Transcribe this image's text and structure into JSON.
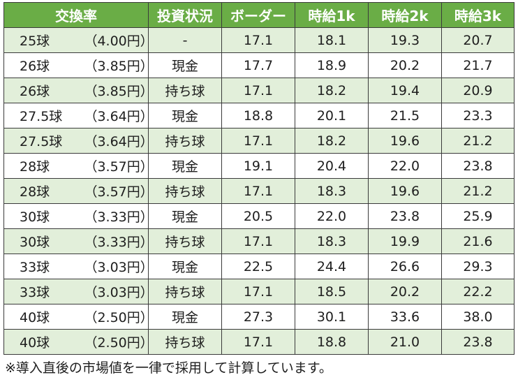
{
  "headers": [
    "交換率",
    "投資状況",
    "ボーダー",
    "時給1k",
    "時給2k",
    "時給3k"
  ],
  "rows": [
    {
      "balls": "25球",
      "yen": "（4.00円）",
      "status": "-",
      "border": "17.1",
      "k1": "18.1",
      "k2": "19.3",
      "k3": "20.7"
    },
    {
      "balls": "26球",
      "yen": "（3.85円）",
      "status": "現金",
      "border": "17.7",
      "k1": "18.9",
      "k2": "20.2",
      "k3": "21.7"
    },
    {
      "balls": "26球",
      "yen": "（3.85円）",
      "status": "持ち球",
      "border": "17.1",
      "k1": "18.2",
      "k2": "19.4",
      "k3": "20.9"
    },
    {
      "balls": "27.5球",
      "yen": "（3.64円）",
      "status": "現金",
      "border": "18.8",
      "k1": "20.1",
      "k2": "21.5",
      "k3": "23.3"
    },
    {
      "balls": "27.5球",
      "yen": "（3.64円）",
      "status": "持ち球",
      "border": "17.1",
      "k1": "18.2",
      "k2": "19.6",
      "k3": "21.2"
    },
    {
      "balls": "28球",
      "yen": "（3.57円）",
      "status": "現金",
      "border": "19.1",
      "k1": "20.4",
      "k2": "22.0",
      "k3": "23.8"
    },
    {
      "balls": "28球",
      "yen": "（3.57円）",
      "status": "持ち球",
      "border": "17.1",
      "k1": "18.3",
      "k2": "19.6",
      "k3": "21.2"
    },
    {
      "balls": "30球",
      "yen": "（3.33円）",
      "status": "現金",
      "border": "20.5",
      "k1": "22.0",
      "k2": "23.8",
      "k3": "25.9"
    },
    {
      "balls": "30球",
      "yen": "（3.33円）",
      "status": "持ち球",
      "border": "17.1",
      "k1": "18.3",
      "k2": "19.9",
      "k3": "21.6"
    },
    {
      "balls": "33球",
      "yen": "（3.03円）",
      "status": "現金",
      "border": "22.5",
      "k1": "24.4",
      "k2": "26.6",
      "k3": "29.3"
    },
    {
      "balls": "33球",
      "yen": "（3.03円）",
      "status": "持ち球",
      "border": "17.1",
      "k1": "18.5",
      "k2": "20.2",
      "k3": "22.2"
    },
    {
      "balls": "40球",
      "yen": "（2.50円）",
      "status": "現金",
      "border": "27.3",
      "k1": "30.1",
      "k2": "33.6",
      "k3": "38.0"
    },
    {
      "balls": "40球",
      "yen": "（2.50円）",
      "status": "持ち球",
      "border": "17.1",
      "k1": "18.8",
      "k2": "21.0",
      "k3": "23.8"
    }
  ],
  "note": "※導入直後の市場値を一律で採用して計算しています。",
  "colors": {
    "header_bg": "#6aad46",
    "header_text": "#ffffff",
    "alt_row_bg": "#e2efda",
    "plain_row_bg": "#ffffff",
    "border": "#3a3a3a"
  }
}
